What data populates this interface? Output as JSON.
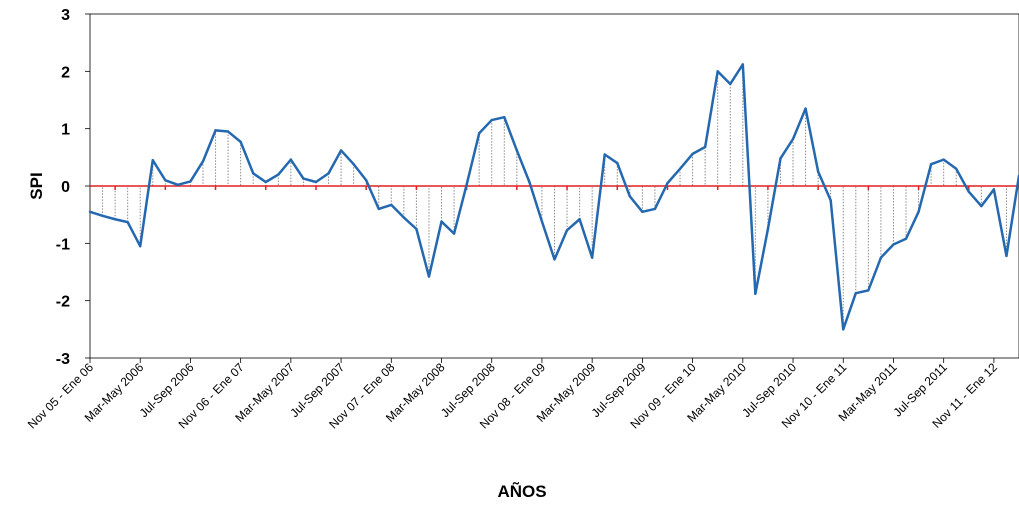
{
  "chart_data": {
    "type": "line",
    "title": "",
    "xlabel": "AÑOS",
    "ylabel": "SPI",
    "ylim": [
      -3,
      3
    ],
    "yticks": [
      "3",
      "2",
      "1",
      "0",
      "-1",
      "-2",
      "-3"
    ],
    "grid": false,
    "legend": "none",
    "colors": {
      "line": "#2468b0",
      "zero_line": "#e02020",
      "drop_lines": "#8c8c8c"
    },
    "x_tick_labels": [
      "Nov 05 - Ene 06",
      "Mar-May 2006",
      "Jul-Sep 2006",
      "Nov 06 - Ene 07",
      "Mar-May 2007",
      "Jul-Sep 2007",
      "Nov 07 - Ene 08",
      "Mar-May 2008",
      "Jul-Sep 2008",
      "Nov 08 - Ene 09",
      "Mar-May 2009",
      "Jul-Sep 2009",
      "Nov 09 - Ene 10",
      "Mar-May 2010",
      "Jul-Sep 2010",
      "Nov 10 - Ene 11",
      "Mar-May 2011",
      "Jul-Sep 2011",
      "Nov 11 - Ene 12"
    ],
    "series": [
      {
        "values": [
          -0.45,
          -0.52,
          -0.58,
          -0.63,
          -1.05,
          0.45,
          0.1,
          0.02,
          0.08,
          0.43,
          0.97,
          0.95,
          0.77,
          0.22,
          0.07,
          0.2,
          0.46,
          0.13,
          0.07,
          0.22,
          0.62,
          0.38,
          0.1,
          -0.4,
          -0.33,
          -0.55,
          -0.75,
          -1.58,
          -0.62,
          -0.83,
          0.02,
          0.92,
          1.15,
          1.2,
          0.62,
          0.07,
          -0.62,
          -1.28,
          -0.77,
          -0.58,
          -1.25,
          0.55,
          0.4,
          -0.18,
          -0.45,
          -0.4,
          0.05,
          0.3,
          0.56,
          0.68,
          2.0,
          1.78,
          2.12,
          -1.88,
          -0.75,
          0.48,
          0.82,
          1.35,
          0.25,
          -0.25,
          -2.5,
          -1.87,
          -1.82,
          -1.25,
          -1.02,
          -0.92,
          -0.45,
          0.38,
          0.46,
          0.3,
          -0.1,
          -0.35,
          -0.06,
          -1.22,
          0.18
        ]
      }
    ]
  }
}
